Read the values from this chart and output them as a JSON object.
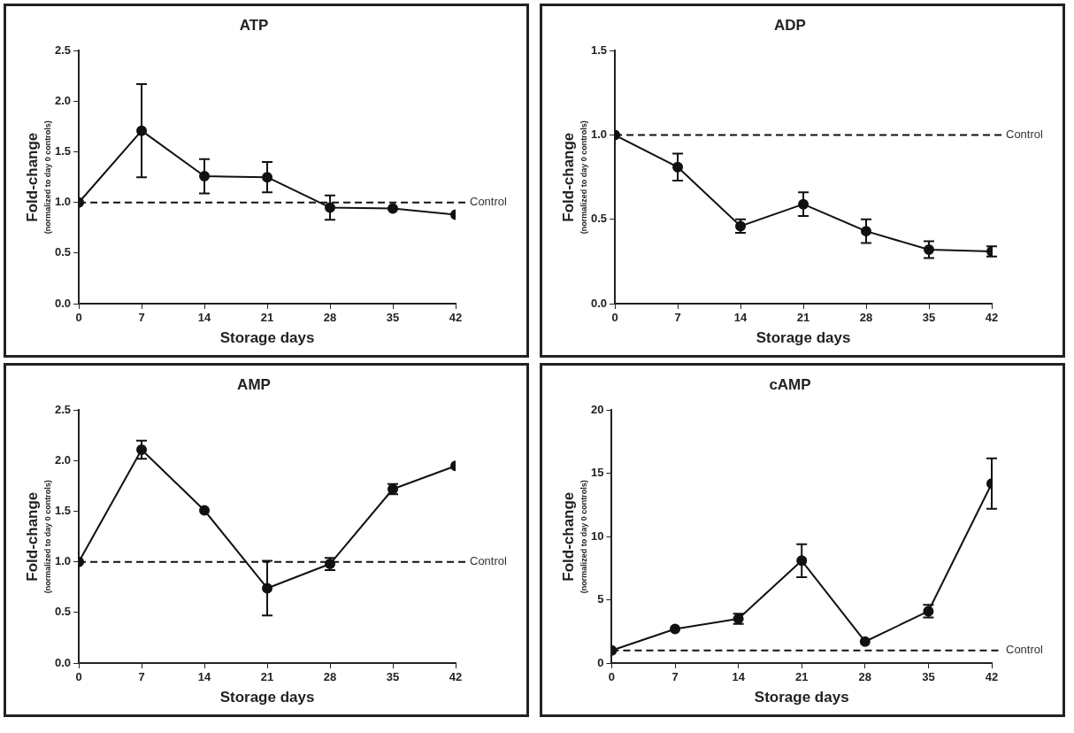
{
  "chart_data": [
    {
      "type": "line",
      "title": "ATP",
      "xlabel": "Storage days",
      "ylabel": "Fold-change\n(normalized to day 0 controls)",
      "x": [
        0,
        7,
        14,
        21,
        28,
        35,
        42
      ],
      "xlim": [
        0,
        42
      ],
      "xticks": [
        0,
        7,
        14,
        21,
        28,
        35,
        42
      ],
      "ylim": [
        0,
        2.5
      ],
      "yticks": [
        {
          "value": 0,
          "label": "0.0"
        },
        {
          "value": 0.5,
          "label": "0.5"
        },
        {
          "value": 1,
          "label": "1.0"
        },
        {
          "value": 1.5,
          "label": "1.5"
        },
        {
          "value": 2,
          "label": "2.0"
        },
        {
          "value": 2.5,
          "label": "2.5"
        }
      ],
      "grid": false,
      "legend": false,
      "marker": "circle",
      "line_style": "solid",
      "series": [
        {
          "color": "#111111",
          "values": [
            1.0,
            1.71,
            1.26,
            1.25,
            0.95,
            0.94,
            0.88
          ],
          "errors": [
            null,
            0.46,
            0.17,
            0.15,
            0.12,
            null,
            null
          ]
        }
      ],
      "ref_lines": [
        {
          "axis": "y",
          "value": 1,
          "label": "Control",
          "color": "#111111",
          "line_style": "dashed"
        }
      ]
    },
    {
      "type": "line",
      "title": "ADP",
      "xlabel": "Storage days",
      "ylabel": "Fold-change\n(normalized to day 0 controls)",
      "x": [
        0,
        7,
        14,
        21,
        28,
        35,
        42
      ],
      "xlim": [
        0,
        42
      ],
      "xticks": [
        0,
        7,
        14,
        21,
        28,
        35,
        42
      ],
      "ylim": [
        0,
        1.5
      ],
      "yticks": [
        {
          "value": 0,
          "label": "0.0"
        },
        {
          "value": 0.5,
          "label": "0.5"
        },
        {
          "value": 1,
          "label": "1.0"
        },
        {
          "value": 1.5,
          "label": "1.5"
        }
      ],
      "grid": false,
      "legend": false,
      "marker": "circle",
      "line_style": "solid",
      "series": [
        {
          "color": "#111111",
          "values": [
            1.0,
            0.81,
            0.46,
            0.59,
            0.43,
            0.32,
            0.31
          ],
          "errors": [
            null,
            0.08,
            0.04,
            0.07,
            0.07,
            0.05,
            0.03
          ]
        }
      ],
      "ref_lines": [
        {
          "axis": "y",
          "value": 1,
          "label": "Control",
          "color": "#111111",
          "line_style": "dashed"
        }
      ]
    },
    {
      "type": "line",
      "title": "AMP",
      "xlabel": "Storage days",
      "ylabel": "Fold-change\n(normalized to day 0 controls)",
      "x": [
        0,
        7,
        14,
        21,
        28,
        35,
        42
      ],
      "xlim": [
        0,
        42
      ],
      "xticks": [
        0,
        7,
        14,
        21,
        28,
        35,
        42
      ],
      "ylim": [
        0,
        2.5
      ],
      "yticks": [
        {
          "value": 0,
          "label": "0.0"
        },
        {
          "value": 0.5,
          "label": "0.5"
        },
        {
          "value": 1,
          "label": "1.0"
        },
        {
          "value": 1.5,
          "label": "1.5"
        },
        {
          "value": 2,
          "label": "2.0"
        },
        {
          "value": 2.5,
          "label": "2.5"
        }
      ],
      "grid": false,
      "legend": false,
      "marker": "circle",
      "line_style": "solid",
      "series": [
        {
          "color": "#111111",
          "values": [
            1.0,
            2.11,
            1.51,
            0.74,
            0.98,
            1.72,
            1.95
          ],
          "errors": [
            null,
            0.09,
            null,
            0.27,
            0.06,
            0.05,
            null
          ]
        }
      ],
      "ref_lines": [
        {
          "axis": "y",
          "value": 1,
          "label": "Control",
          "color": "#111111",
          "line_style": "dashed"
        }
      ]
    },
    {
      "type": "line",
      "title": "cAMP",
      "xlabel": "Storage days",
      "ylabel": "Fold-change\n(normalized to day 0 controls)",
      "x": [
        0,
        7,
        14,
        21,
        28,
        35,
        42
      ],
      "xlim": [
        0,
        42
      ],
      "xticks": [
        0,
        7,
        14,
        21,
        28,
        35,
        42
      ],
      "ylim": [
        0,
        20
      ],
      "yticks": [
        0,
        5,
        10,
        15,
        20
      ],
      "grid": false,
      "legend": false,
      "marker": "circle",
      "line_style": "solid",
      "series": [
        {
          "color": "#111111",
          "values": [
            1.0,
            2.7,
            3.5,
            8.1,
            1.7,
            4.1,
            14.2
          ],
          "errors": [
            null,
            null,
            0.4,
            1.3,
            null,
            0.5,
            2.0
          ]
        }
      ],
      "ref_lines": [
        {
          "axis": "y",
          "value": 1,
          "label": "Control",
          "color": "#111111",
          "line_style": "dashed"
        }
      ]
    }
  ]
}
